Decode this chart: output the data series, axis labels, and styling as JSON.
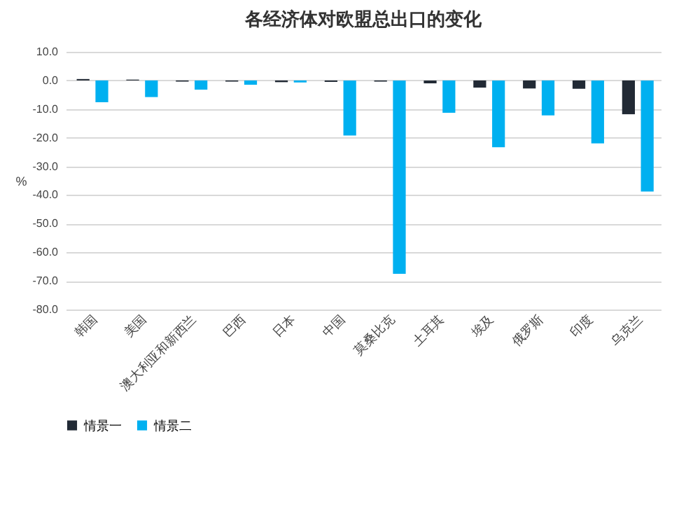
{
  "chart_data": {
    "type": "bar",
    "title": "各经济体对欧盟总出口的变化",
    "ylabel": "%",
    "categories": [
      "韩国",
      "美国",
      "澳大利亚和新西兰",
      "巴西",
      "日本",
      "中国",
      "莫桑比克",
      "土耳其",
      "埃及",
      "俄罗斯",
      "印度",
      "乌克兰"
    ],
    "series": [
      {
        "name": "情景一",
        "color": "#222a35",
        "values": [
          0.5,
          0.3,
          -0.4,
          -0.4,
          -0.6,
          -0.5,
          -0.4,
          -1.0,
          -2.5,
          -2.8,
          -2.9,
          -11.8
        ]
      },
      {
        "name": "情景二",
        "color": "#00b0f0",
        "values": [
          -7.6,
          -5.8,
          -3.2,
          -1.5,
          -0.7,
          -19.2,
          -67.5,
          -11.3,
          -23.3,
          -12.2,
          -22.0,
          -38.8
        ]
      }
    ],
    "ylim": [
      -80,
      10
    ],
    "yticks": [
      {
        "value": 10,
        "label": "10.0"
      },
      {
        "value": 0,
        "label": "0.0"
      },
      {
        "value": -10,
        "label": "-10.0"
      },
      {
        "value": -20,
        "label": "-20.0"
      },
      {
        "value": -30,
        "label": "-30.0"
      },
      {
        "value": -40,
        "label": "-40.0"
      },
      {
        "value": -50,
        "label": "-50.0"
      },
      {
        "value": -60,
        "label": "-60.0"
      },
      {
        "value": -70,
        "label": "-70.0"
      },
      {
        "value": -80,
        "label": "-80.0"
      }
    ],
    "grid": "y",
    "legend": "bottom"
  }
}
